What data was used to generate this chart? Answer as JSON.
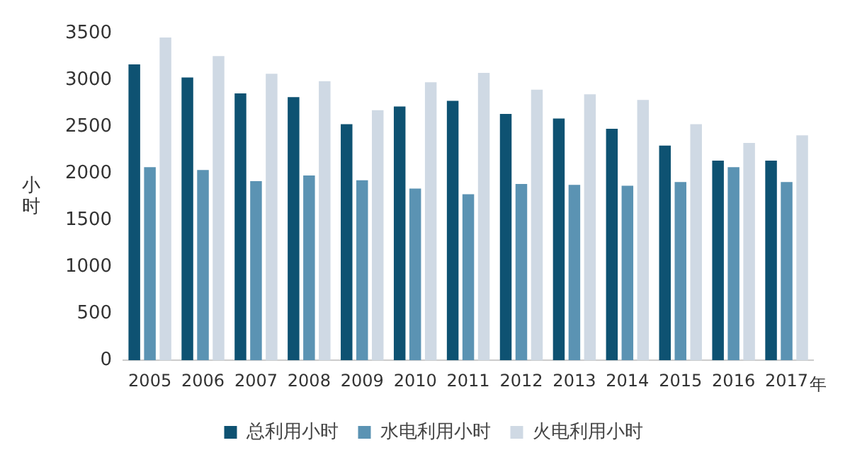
{
  "chart_data": {
    "type": "bar",
    "categories": [
      "2005",
      "2006",
      "2007",
      "2008",
      "2009",
      "2010",
      "2011",
      "2012",
      "2013",
      "2014",
      "2015",
      "2016",
      "2017"
    ],
    "xlabel": "年",
    "ylabel": "小时",
    "series": [
      {
        "name": "总利用小时",
        "color": "#0e5272",
        "values": [
          3170,
          3030,
          2860,
          2820,
          2530,
          2720,
          2780,
          2640,
          2590,
          2480,
          2300,
          2140,
          2140
        ]
      },
      {
        "name": "水电利用小时",
        "color": "#5b93b3",
        "values": [
          2070,
          2040,
          1920,
          1980,
          1930,
          1840,
          1780,
          1890,
          1880,
          1870,
          1910,
          2070,
          1910
        ]
      },
      {
        "name": "火电利用小时",
        "color": "#cfd9e4",
        "values": [
          3460,
          3260,
          3070,
          2990,
          2680,
          2980,
          3080,
          2900,
          2850,
          2790,
          2530,
          2330,
          2410
        ]
      }
    ],
    "ylim": [
      0,
      3500
    ],
    "yticks": [
      0,
      500,
      1000,
      1500,
      2000,
      2500,
      3000,
      3500
    ],
    "grid": false,
    "legend": "bottom"
  }
}
